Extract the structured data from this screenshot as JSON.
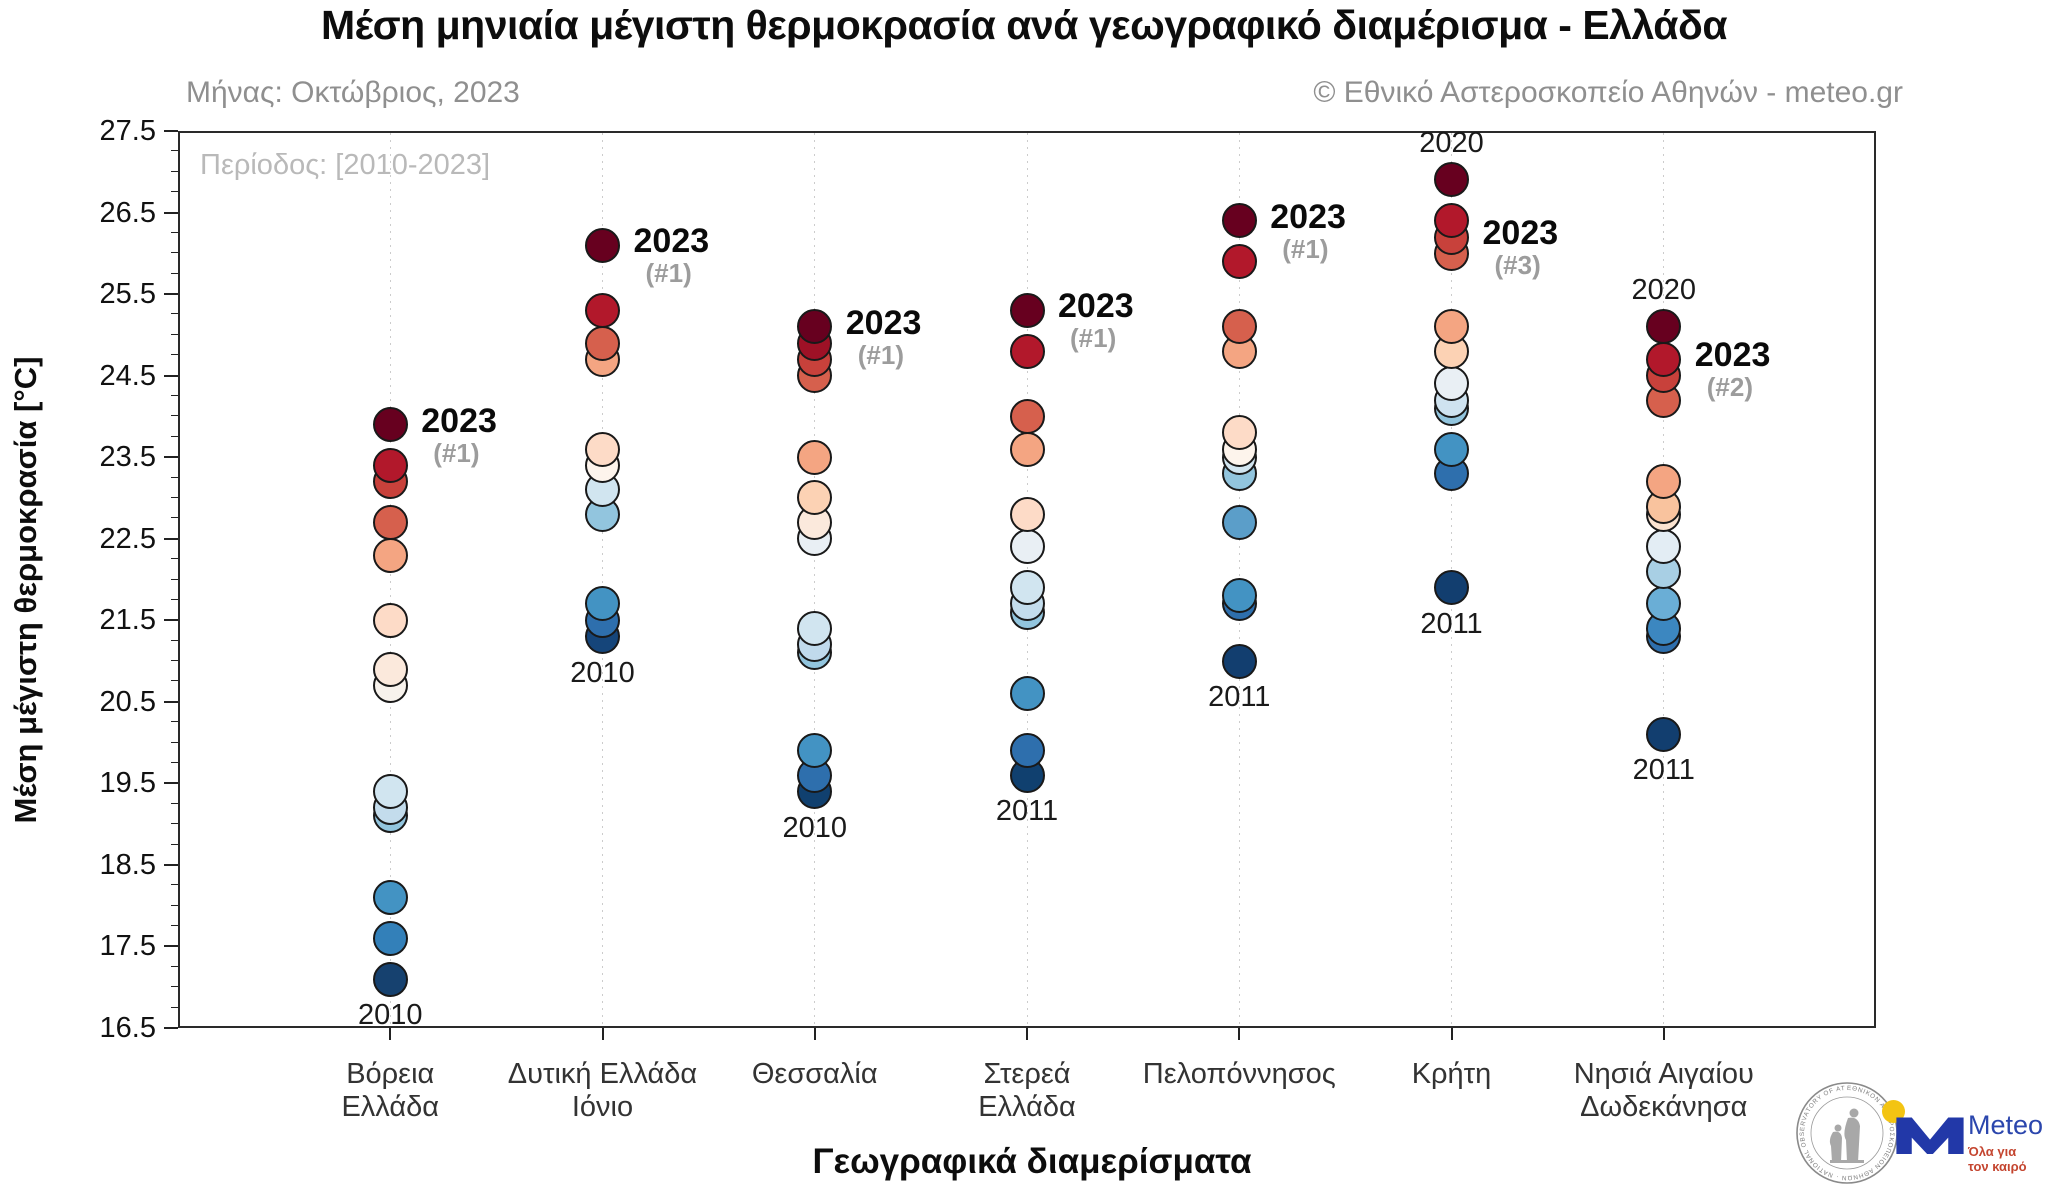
{
  "chart_data": {
    "type": "scatter",
    "title": "Μέση μηνιαία μέγιστη θερμοκρασία ανά γεωγραφικό διαμέρισμα - Ελλάδα",
    "subtitle_left": "Μήνας: Οκτώβριος, 2023",
    "subtitle_right": "© Εθνικό Αστεροσκοπείο Αθηνών - meteo.gr",
    "period_note": "Περίοδος: [2010-2023]",
    "xlabel": "Γεωγραφικά διαμερίσματα",
    "ylabel": "Μέση μέγιστη θερμοκρασία [°C]",
    "ylim": [
      16.5,
      27.5
    ],
    "ytick_step": 1.0,
    "yminor_step": 0.25,
    "ytick_labels": [
      "27.5",
      "26.5",
      "25.5",
      "24.5",
      "23.5",
      "22.5",
      "21.5",
      "20.5",
      "19.5",
      "18.5",
      "17.5",
      "16.5"
    ],
    "grid": "vertical-dotted",
    "legend": "none",
    "color_scale": "RdBu: warmest years dark red, coldest years dark blue, ranked within each region",
    "units": "°C",
    "categories": [
      {
        "label": "Βόρεια Ελλάδα",
        "label_lines": [
          "Βόρεια",
          "Ελλάδα"
        ],
        "points": [
          {
            "v": 23.9,
            "c": "#67001f"
          },
          {
            "v": 23.4,
            "c": "#b2182b"
          },
          {
            "v": 23.2,
            "c": "#c8413b"
          },
          {
            "v": 22.7,
            "c": "#d6604d"
          },
          {
            "v": 22.3,
            "c": "#f4a582"
          },
          {
            "v": 21.5,
            "c": "#fddbc7"
          },
          {
            "v": 20.9,
            "c": "#fbe9dc"
          },
          {
            "v": 20.7,
            "c": "#f7f2ec"
          },
          {
            "v": 19.4,
            "c": "#d1e5f0"
          },
          {
            "v": 19.2,
            "c": "#c3dcec"
          },
          {
            "v": 19.1,
            "c": "#92c5de"
          },
          {
            "v": 18.1,
            "c": "#4393c3"
          },
          {
            "v": 17.6,
            "c": "#3380b9"
          },
          {
            "v": 17.1,
            "c": "#16416f"
          }
        ],
        "best": {
          "text": "2023",
          "rank": "(#1)",
          "value": 23.9
        },
        "top_year": null,
        "bottom_year": {
          "text": "2010",
          "value": 17.1
        }
      },
      {
        "label": "Δυτική Ελλάδα Ιόνιο",
        "label_lines": [
          "Δυτική Ελλάδα",
          "Ιόνιο"
        ],
        "points": [
          {
            "v": 26.1,
            "c": "#67001f"
          },
          {
            "v": 25.3,
            "c": "#b2182b"
          },
          {
            "v": 24.9,
            "c": "#d6604d"
          },
          {
            "v": 24.7,
            "c": "#f4a582"
          },
          {
            "v": 23.6,
            "c": "#fddbc7"
          },
          {
            "v": 23.4,
            "c": "#fdf4ec"
          },
          {
            "v": 23.1,
            "c": "#d1e5f0"
          },
          {
            "v": 22.8,
            "c": "#92c5de"
          },
          {
            "v": 21.7,
            "c": "#4393c3"
          },
          {
            "v": 21.5,
            "c": "#2e6fad"
          },
          {
            "v": 21.3,
            "c": "#15457a"
          }
        ],
        "best": {
          "text": "2023",
          "rank": "(#1)",
          "value": 26.1
        },
        "top_year": null,
        "bottom_year": {
          "text": "2010",
          "value": 21.3
        }
      },
      {
        "label": "Θεσσαλία",
        "label_lines": [
          "Θεσσαλία"
        ],
        "points": [
          {
            "v": 25.1,
            "c": "#67001f"
          },
          {
            "v": 24.9,
            "c": "#9e1126"
          },
          {
            "v": 24.7,
            "c": "#c8413b"
          },
          {
            "v": 24.5,
            "c": "#d6604d"
          },
          {
            "v": 23.5,
            "c": "#f4a582"
          },
          {
            "v": 23.0,
            "c": "#fcd2b4"
          },
          {
            "v": 22.7,
            "c": "#fbe9dc"
          },
          {
            "v": 22.5,
            "c": "#e9eff4"
          },
          {
            "v": 21.4,
            "c": "#d1e5f0"
          },
          {
            "v": 21.2,
            "c": "#c0daec"
          },
          {
            "v": 21.1,
            "c": "#92c5de"
          },
          {
            "v": 19.9,
            "c": "#4393c3"
          },
          {
            "v": 19.6,
            "c": "#2e6fad"
          },
          {
            "v": 19.4,
            "c": "#10406f"
          }
        ],
        "best": {
          "text": "2023",
          "rank": "(#1)",
          "value": 25.1
        },
        "top_year": null,
        "bottom_year": {
          "text": "2010",
          "value": 19.4
        }
      },
      {
        "label": "Στερεά Ελλάδα",
        "label_lines": [
          "Στερεά",
          "Ελλάδα"
        ],
        "points": [
          {
            "v": 25.3,
            "c": "#67001f"
          },
          {
            "v": 24.8,
            "c": "#b2182b"
          },
          {
            "v": 24.0,
            "c": "#d6604d"
          },
          {
            "v": 23.6,
            "c": "#f4a582"
          },
          {
            "v": 22.8,
            "c": "#fddbc7"
          },
          {
            "v": 22.4,
            "c": "#e9eff4"
          },
          {
            "v": 21.9,
            "c": "#d1e5f0"
          },
          {
            "v": 21.7,
            "c": "#c3dcec"
          },
          {
            "v": 21.6,
            "c": "#92c5de"
          },
          {
            "v": 20.6,
            "c": "#4393c3"
          },
          {
            "v": 19.9,
            "c": "#2e6fad"
          },
          {
            "v": 19.6,
            "c": "#10406f"
          }
        ],
        "best": {
          "text": "2023",
          "rank": "(#1)",
          "value": 25.3
        },
        "top_year": null,
        "bottom_year": {
          "text": "2011",
          "value": 19.6
        }
      },
      {
        "label": "Πελοπόννησος",
        "label_lines": [
          "Πελοπόννησος"
        ],
        "points": [
          {
            "v": 26.4,
            "c": "#67001f"
          },
          {
            "v": 25.9,
            "c": "#b2182b"
          },
          {
            "v": 25.1,
            "c": "#d6604d"
          },
          {
            "v": 24.8,
            "c": "#f4a582"
          },
          {
            "v": 23.8,
            "c": "#fddbc7"
          },
          {
            "v": 23.6,
            "c": "#fdf4ec"
          },
          {
            "v": 23.5,
            "c": "#d1e5f0"
          },
          {
            "v": 23.3,
            "c": "#92c5de"
          },
          {
            "v": 22.7,
            "c": "#5b9ec9"
          },
          {
            "v": 21.8,
            "c": "#4393c3"
          },
          {
            "v": 21.7,
            "c": "#2e6fad"
          },
          {
            "v": 21.0,
            "c": "#123e6f"
          }
        ],
        "best": {
          "text": "2023",
          "rank": "(#1)",
          "value": 26.4
        },
        "top_year": null,
        "bottom_year": {
          "text": "2011",
          "value": 21.0
        }
      },
      {
        "label": "Κρήτη",
        "label_lines": [
          "Κρήτη"
        ],
        "points": [
          {
            "v": 26.9,
            "c": "#67001f"
          },
          {
            "v": 26.4,
            "c": "#b2182b"
          },
          {
            "v": 26.2,
            "c": "#c8413b"
          },
          {
            "v": 26.0,
            "c": "#d6604d"
          },
          {
            "v": 25.1,
            "c": "#f4a582"
          },
          {
            "v": 24.8,
            "c": "#fcd2b4"
          },
          {
            "v": 24.4,
            "c": "#e9eff4"
          },
          {
            "v": 24.2,
            "c": "#cfe3f0"
          },
          {
            "v": 24.1,
            "c": "#92c5de"
          },
          {
            "v": 23.6,
            "c": "#4393c3"
          },
          {
            "v": 23.3,
            "c": "#2e6fad"
          },
          {
            "v": 21.9,
            "c": "#123e6f"
          }
        ],
        "best": {
          "text": "2023",
          "rank": "(#3)",
          "value": 26.2
        },
        "top_year": {
          "text": "2020",
          "value": 26.9
        },
        "bottom_year": {
          "text": "2011",
          "value": 21.9
        }
      },
      {
        "label": "Νησιά Αιγαίου Δωδεκάνησα",
        "label_lines": [
          "Νησιά Αιγαίου",
          "Δωδεκάνησα"
        ],
        "points": [
          {
            "v": 25.1,
            "c": "#67001f"
          },
          {
            "v": 24.7,
            "c": "#b2182b"
          },
          {
            "v": 24.5,
            "c": "#c8413b"
          },
          {
            "v": 24.2,
            "c": "#d6604d"
          },
          {
            "v": 23.2,
            "c": "#f4a582"
          },
          {
            "v": 22.9,
            "c": "#f9c39e"
          },
          {
            "v": 22.8,
            "c": "#fbe3d0"
          },
          {
            "v": 22.4,
            "c": "#e3edf4"
          },
          {
            "v": 22.1,
            "c": "#a8cfe4"
          },
          {
            "v": 21.7,
            "c": "#6aaed6"
          },
          {
            "v": 21.4,
            "c": "#3c87c0"
          },
          {
            "v": 21.3,
            "c": "#2e6fad"
          },
          {
            "v": 20.1,
            "c": "#123e6f"
          }
        ],
        "best": {
          "text": "2023",
          "rank": "(#2)",
          "value": 24.7
        },
        "top_year": {
          "text": "2020",
          "value": 25.1
        },
        "bottom_year": {
          "text": "2011",
          "value": 20.1
        }
      }
    ]
  },
  "logos": {
    "noa_seal": {
      "ring_text": "ΕΘΝΙΚΟΝ ΑΣΤΕΡΟΣΚΟΠΕΙΟΝ ΑΘΗΝΩΝ · NATIONAL OBSERVATORY OF ATHENS ·"
    },
    "meteo": {
      "brand": "Meteo",
      "tagline_line1": "Όλα για",
      "tagline_line2": "τον καιρό",
      "dot_color": "#f3c412",
      "m_color": "#2238a8",
      "brand_color": "#2b46ad",
      "tagline_color": "#c4452f"
    }
  }
}
